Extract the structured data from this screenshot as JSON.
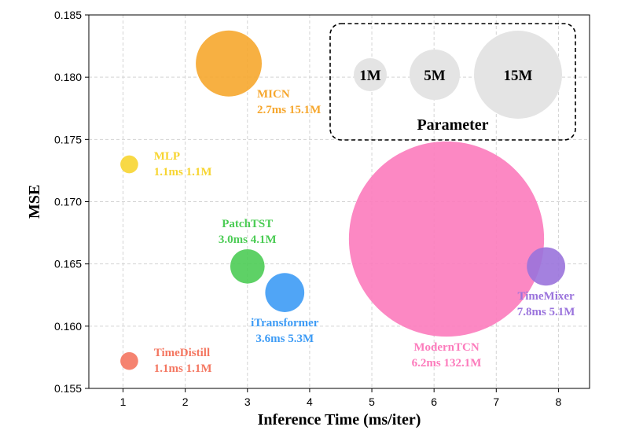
{
  "chart_data": {
    "type": "bubble",
    "xlabel": "Inference Time (ms/iter)",
    "ylabel": "MSE",
    "xlim": [
      0.45,
      8.5
    ],
    "ylim": [
      0.155,
      0.185
    ],
    "xticks": [
      "1",
      "2",
      "3",
      "4",
      "5",
      "6",
      "7",
      "8"
    ],
    "yticks": [
      "0.155",
      "0.160",
      "0.165",
      "0.170",
      "0.175",
      "0.180",
      "0.185"
    ],
    "grid": true,
    "legend": {
      "title": "Parameter",
      "placement": "top-right",
      "entries": [
        {
          "label": "1M",
          "params": 1
        },
        {
          "label": "5M",
          "params": 5
        },
        {
          "label": "15M",
          "params": 15
        }
      ]
    },
    "points": [
      {
        "name": "TimeDistill",
        "x": 1.1,
        "y": 0.1572,
        "params": 1.1,
        "label_line1": "TimeDistill",
        "label_line2": "1.1ms 1.1M",
        "color": "#f47660"
      },
      {
        "name": "MLP",
        "x": 1.1,
        "y": 0.173,
        "params": 1.1,
        "label_line1": "MLP",
        "label_line2": "1.1ms 1.1M",
        "color": "#f7d531"
      },
      {
        "name": "MICN",
        "x": 2.7,
        "y": 0.1811,
        "params": 15.1,
        "label_line1": "MICN",
        "label_line2": "2.7ms 15.1M",
        "color": "#f6a72e"
      },
      {
        "name": "PatchTST",
        "x": 3.0,
        "y": 0.1648,
        "params": 4.1,
        "label_line1": "PatchTST",
        "label_line2": "3.0ms 4.1M",
        "color": "#4ccc55"
      },
      {
        "name": "iTransformer",
        "x": 3.6,
        "y": 0.1627,
        "params": 5.3,
        "label_line1": "iTransformer",
        "label_line2": "3.6ms 5.3M",
        "color": "#3d9bf5"
      },
      {
        "name": "ModernTCN",
        "x": 6.2,
        "y": 0.167,
        "params": 132.1,
        "label_line1": "ModernTCN",
        "label_line2": "6.2ms 132.1M",
        "color": "#fc7bbc"
      },
      {
        "name": "TimeMixer",
        "x": 7.8,
        "y": 0.1648,
        "params": 5.1,
        "label_line1": "TimeMixer",
        "label_line2": "7.8ms 5.1M",
        "color": "#9a73dc"
      }
    ]
  }
}
